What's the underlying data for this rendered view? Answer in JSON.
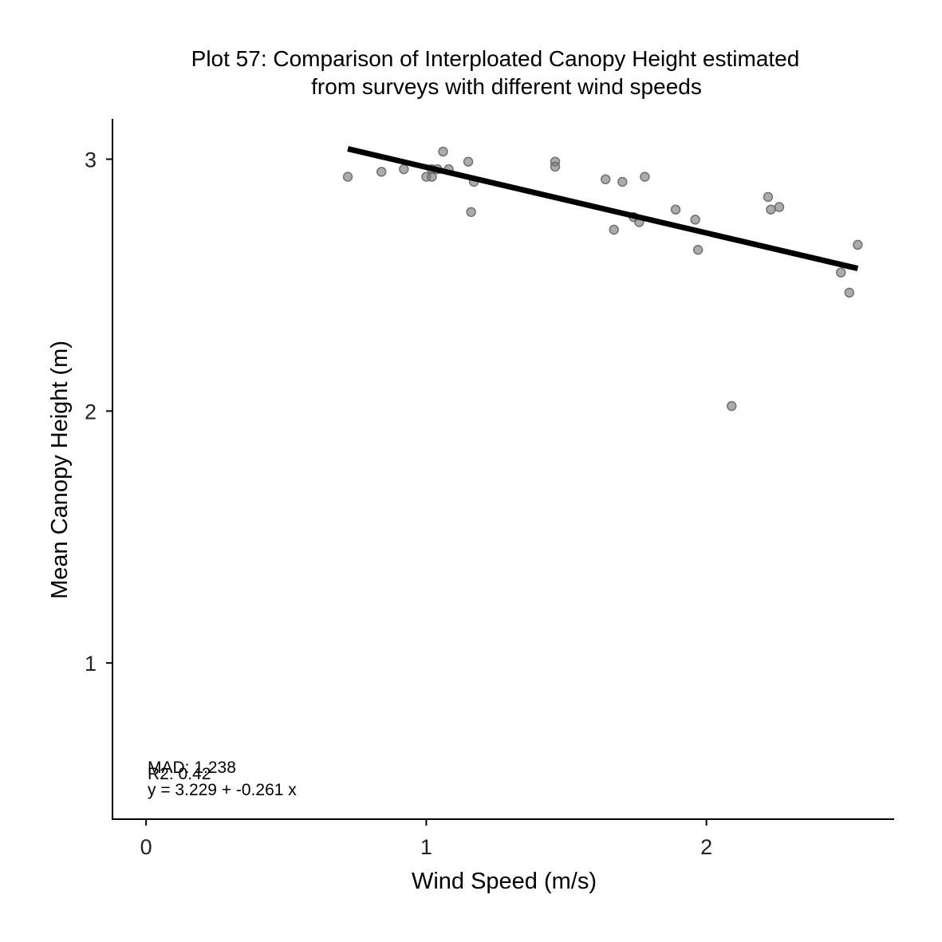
{
  "chart_data": {
    "type": "scatter",
    "title_lines": [
      "Plot 57: Comparison of Interploated Canopy Height estimated",
      "from surveys with different wind speeds"
    ],
    "xlabel": "Wind Speed (m/s)",
    "ylabel": "Mean Canopy Height (m)",
    "xlim": [
      -0.12,
      2.67
    ],
    "ylim": [
      0.38,
      3.16
    ],
    "x_ticks": [
      0,
      1,
      2
    ],
    "y_ticks": [
      1,
      2,
      3
    ],
    "grid": false,
    "legend": "none",
    "point_color": "#808080",
    "line_color": "#000000",
    "points": [
      {
        "x": 0.72,
        "y": 2.93
      },
      {
        "x": 0.84,
        "y": 2.95
      },
      {
        "x": 0.92,
        "y": 2.96
      },
      {
        "x": 1.0,
        "y": 2.93
      },
      {
        "x": 1.02,
        "y": 2.96
      },
      {
        "x": 1.02,
        "y": 2.93
      },
      {
        "x": 1.04,
        "y": 2.96
      },
      {
        "x": 1.06,
        "y": 3.03
      },
      {
        "x": 1.08,
        "y": 2.96
      },
      {
        "x": 1.15,
        "y": 2.99
      },
      {
        "x": 1.16,
        "y": 2.79
      },
      {
        "x": 1.17,
        "y": 2.91
      },
      {
        "x": 1.46,
        "y": 2.99
      },
      {
        "x": 1.46,
        "y": 2.97
      },
      {
        "x": 1.64,
        "y": 2.92
      },
      {
        "x": 1.67,
        "y": 2.72
      },
      {
        "x": 1.7,
        "y": 2.91
      },
      {
        "x": 1.74,
        "y": 2.77
      },
      {
        "x": 1.76,
        "y": 2.75
      },
      {
        "x": 1.78,
        "y": 2.93
      },
      {
        "x": 1.89,
        "y": 2.8
      },
      {
        "x": 1.96,
        "y": 2.76
      },
      {
        "x": 1.97,
        "y": 2.64
      },
      {
        "x": 2.09,
        "y": 2.02
      },
      {
        "x": 2.22,
        "y": 2.85
      },
      {
        "x": 2.23,
        "y": 2.8
      },
      {
        "x": 2.26,
        "y": 2.81
      },
      {
        "x": 2.48,
        "y": 2.55
      },
      {
        "x": 2.51,
        "y": 2.47
      },
      {
        "x": 2.54,
        "y": 2.66
      }
    ],
    "fit_line": {
      "intercept": 3.229,
      "slope": -0.261,
      "x_range": [
        0.72,
        2.54
      ]
    },
    "annotations": {
      "mad": "MAD: 1.238",
      "r2": "R2: 0.42",
      "equation": "y =  3.229 + -0.261 x"
    }
  }
}
